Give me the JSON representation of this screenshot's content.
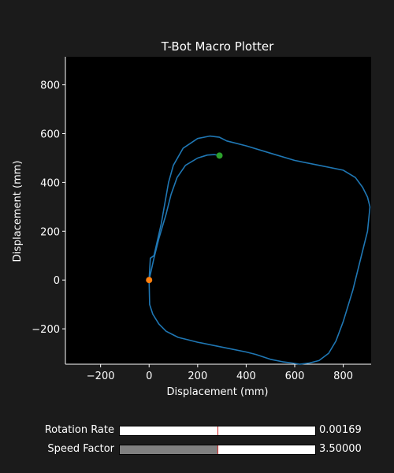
{
  "chart_data": {
    "type": "line",
    "title": "T-Bot Macro Plotter",
    "xlabel": "Displacement (mm)",
    "ylabel": "Displacement (mm)",
    "xlim": [
      -345,
      915
    ],
    "ylim": [
      -345,
      915
    ],
    "xticks": [
      -200,
      0,
      200,
      400,
      600,
      800
    ],
    "yticks": [
      -200,
      0,
      200,
      400,
      600,
      800
    ],
    "xtick_labels": [
      "−200",
      "0",
      "200",
      "400",
      "600",
      "800"
    ],
    "ytick_labels": [
      "−200",
      "0",
      "200",
      "400",
      "600",
      "800"
    ],
    "grid": false,
    "series": [
      {
        "color": "#1f77b4",
        "x": [
          0,
          5,
          20,
          50,
          80,
          100,
          140,
          200,
          250,
          290,
          320,
          340,
          400,
          500,
          600,
          700,
          800,
          850,
          880,
          900,
          910,
          900,
          870,
          840,
          800,
          770,
          740,
          700,
          660,
          620,
          590,
          550,
          500,
          440,
          400,
          300,
          200,
          160,
          120,
          100,
          70,
          40,
          15,
          2,
          0,
          20,
          40,
          70,
          90,
          115,
          150,
          200,
          240,
          270,
          290
        ],
        "y": [
          0,
          90,
          100,
          230,
          400,
          470,
          540,
          580,
          590,
          585,
          570,
          565,
          550,
          520,
          490,
          470,
          450,
          420,
          380,
          340,
          300,
          200,
          80,
          -40,
          -170,
          -250,
          -300,
          -330,
          -340,
          -345,
          -340,
          -335,
          -325,
          -305,
          -295,
          -275,
          -255,
          -245,
          -235,
          -225,
          -210,
          -180,
          -140,
          -100,
          0,
          90,
          170,
          270,
          350,
          420,
          470,
          500,
          512,
          514,
          510
        ]
      }
    ],
    "markers": [
      {
        "x": 0,
        "y": 0,
        "color": "#ff7f0e"
      },
      {
        "x": 290,
        "y": 510,
        "color": "#2ca02c"
      }
    ]
  },
  "controls": {
    "rotation_rate": {
      "label": "Rotation Rate",
      "value": "0.00169",
      "fraction": 0.0,
      "marker_fraction": 0.5
    },
    "speed_factor": {
      "label": "Speed Factor",
      "value": "3.50000",
      "fraction": 0.5,
      "marker_fraction": 0.5
    }
  }
}
